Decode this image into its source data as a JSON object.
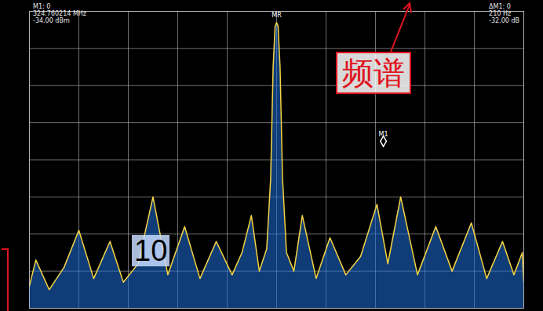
{
  "chart_data": {
    "type": "line",
    "x": [
      0,
      0.13,
      0.4,
      0.7,
      1.0,
      1.3,
      1.63,
      1.9,
      2.2,
      2.5,
      2.8,
      3.14,
      3.45,
      3.78,
      4.1,
      4.3,
      4.49,
      4.65,
      4.8,
      4.88,
      4.93,
      4.97,
      5.0,
      5.03,
      5.07,
      5.12,
      5.2,
      5.35,
      5.52,
      5.8,
      6.08,
      6.4,
      6.7,
      7.03,
      7.25,
      7.51,
      7.85,
      8.22,
      8.55,
      8.94,
      9.25,
      9.57,
      9.8,
      9.97,
      10
    ],
    "values": [
      0.6,
      1.3,
      0.5,
      1.1,
      2.1,
      0.8,
      1.8,
      0.7,
      1.2,
      3.0,
      0.9,
      2.2,
      0.8,
      1.8,
      0.9,
      1.5,
      2.5,
      1.0,
      1.6,
      3.5,
      6.5,
      7.6,
      7.7,
      7.6,
      6.5,
      3.5,
      1.5,
      1.0,
      2.5,
      0.8,
      1.9,
      0.9,
      1.4,
      2.8,
      1.2,
      3.0,
      0.9,
      2.2,
      1.0,
      2.3,
      0.8,
      1.8,
      0.9,
      1.5,
      0.7
    ],
    "color": "#f5d442",
    "xlim": [
      0,
      10
    ],
    "ylim": [
      0,
      8
    ],
    "xticks": [
      0,
      1,
      2,
      3,
      4,
      5,
      6,
      7,
      8,
      9,
      10
    ],
    "yticks": [
      0,
      1,
      2,
      3,
      4,
      5,
      6,
      7,
      8
    ],
    "grid": true,
    "tick_labels": false,
    "markers": [
      {
        "label": "MR",
        "x": 5.0,
        "y": 7.7
      },
      {
        "label": "M1",
        "x": 7.16,
        "y": 4.5
      }
    ],
    "readout_left": [
      "M1: 0",
      "324.760214 MHz",
      "-34.00 dBm"
    ],
    "readout_right": [
      "ΔM1: 0",
      "210 Hz",
      "-32.00 dB"
    ],
    "annotations": [
      "频谱",
      "10"
    ]
  }
}
